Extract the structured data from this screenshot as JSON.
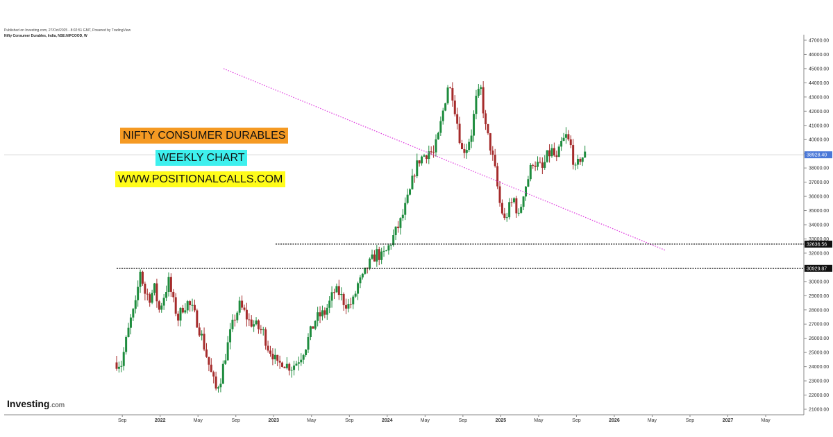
{
  "header": {
    "published": "Published on Investing.com, 27/Oct/2025 - 8:02:51 GMT, Powered by TradingView",
    "symbol": "Nifty Consumer Durables, India, NSE:NIFCOOD, W"
  },
  "annotations": {
    "title": "NIFTY CONSUMER DURABLES",
    "subtitle": "WEEKLY CHART",
    "website": "WWW.POSITIONALCALLS.COM"
  },
  "logo": {
    "name": "Investing",
    "suffix": ".com"
  },
  "colors": {
    "up": "#1e8c3e",
    "down": "#a52b2b",
    "trendline": "#e040e0",
    "support": "#111111",
    "last_price_tag": "#4a78d8",
    "level_tag": "#111111"
  },
  "chart_data": {
    "type": "candlestick",
    "timeframe": "Weekly",
    "y_axis": {
      "min": 21000,
      "max": 47000,
      "step": 1000,
      "position": "right"
    },
    "x_axis": {
      "tick_labels": [
        "Sep",
        "2022",
        "May",
        "Sep",
        "2023",
        "May",
        "Sep",
        "2024",
        "May",
        "Sep",
        "2025",
        "May",
        "Sep",
        "2026",
        "May",
        "Sep",
        "2027",
        "May"
      ]
    },
    "last_price": {
      "label": "38928.40",
      "value": 38928.4
    },
    "levels": [
      {
        "label": "32636.56",
        "value": 32636.56
      },
      {
        "label": "30929.87",
        "value": 30929.87
      }
    ],
    "trendline": {
      "from": {
        "month_index": 11.3,
        "value": 45000
      },
      "to": {
        "month_index": 58.0,
        "value": 32200
      }
    },
    "price_path": [
      [
        0.0,
        24300
      ],
      [
        0.5,
        24200
      ],
      [
        1.0,
        25800
      ],
      [
        1.5,
        27300
      ],
      [
        2.0,
        28300
      ],
      [
        2.5,
        30800
      ],
      [
        3.0,
        29200
      ],
      [
        3.5,
        28900
      ],
      [
        4.0,
        29500
      ],
      [
        4.5,
        28000
      ],
      [
        5.0,
        29000
      ],
      [
        5.5,
        30000
      ],
      [
        6.0,
        28500
      ],
      [
        6.5,
        27400
      ],
      [
        7.0,
        28200
      ],
      [
        7.5,
        28500
      ],
      [
        8.0,
        28000
      ],
      [
        8.5,
        27200
      ],
      [
        9.0,
        26100
      ],
      [
        9.5,
        24800
      ],
      [
        10.0,
        23500
      ],
      [
        10.5,
        22400
      ],
      [
        11.0,
        23200
      ],
      [
        11.5,
        24800
      ],
      [
        12.0,
        26300
      ],
      [
        12.5,
        27500
      ],
      [
        13.0,
        28300
      ],
      [
        13.5,
        27800
      ],
      [
        14.0,
        27200
      ],
      [
        14.5,
        27000
      ],
      [
        15.0,
        26700
      ],
      [
        15.5,
        26400
      ],
      [
        16.0,
        25400
      ],
      [
        16.5,
        24900
      ],
      [
        17.0,
        24000
      ],
      [
        17.5,
        24400
      ],
      [
        18.0,
        24100
      ],
      [
        18.5,
        24000
      ],
      [
        19.0,
        24300
      ],
      [
        19.5,
        24800
      ],
      [
        20.0,
        25500
      ],
      [
        20.5,
        26400
      ],
      [
        21.0,
        27300
      ],
      [
        21.5,
        27600
      ],
      [
        22.0,
        27800
      ],
      [
        22.5,
        28500
      ],
      [
        23.0,
        29300
      ],
      [
        23.5,
        29200
      ],
      [
        24.0,
        28600
      ],
      [
        24.5,
        28300
      ],
      [
        25.0,
        28600
      ],
      [
        25.5,
        29800
      ],
      [
        26.0,
        30200
      ],
      [
        26.5,
        31000
      ],
      [
        27.0,
        31500
      ],
      [
        27.5,
        32000
      ],
      [
        28.0,
        31700
      ],
      [
        28.5,
        32100
      ],
      [
        29.0,
        32800
      ],
      [
        29.5,
        33500
      ],
      [
        30.0,
        34200
      ],
      [
        30.5,
        35200
      ],
      [
        31.0,
        36300
      ],
      [
        31.5,
        37800
      ],
      [
        32.0,
        38600
      ],
      [
        32.5,
        38900
      ],
      [
        33.0,
        39200
      ],
      [
        33.5,
        39000
      ],
      [
        34.0,
        40200
      ],
      [
        34.5,
        42000
      ],
      [
        35.0,
        43800
      ],
      [
        35.5,
        43200
      ],
      [
        36.0,
        41200
      ],
      [
        36.5,
        39200
      ],
      [
        37.0,
        39500
      ],
      [
        37.5,
        40500
      ],
      [
        38.0,
        42800
      ],
      [
        38.5,
        43500
      ],
      [
        39.0,
        40800
      ],
      [
        39.5,
        39500
      ],
      [
        40.0,
        37800
      ],
      [
        40.5,
        35500
      ],
      [
        41.0,
        34300
      ],
      [
        41.5,
        35200
      ],
      [
        42.0,
        35800
      ],
      [
        42.5,
        34500
      ],
      [
        43.0,
        36300
      ],
      [
        43.5,
        37300
      ],
      [
        44.0,
        38500
      ],
      [
        44.5,
        38200
      ],
      [
        45.0,
        37900
      ],
      [
        45.5,
        38800
      ],
      [
        46.0,
        39200
      ],
      [
        46.5,
        38500
      ],
      [
        47.0,
        39700
      ],
      [
        47.5,
        40200
      ],
      [
        48.0,
        39500
      ],
      [
        48.5,
        37800
      ],
      [
        49.0,
        38700
      ],
      [
        49.5,
        38900
      ]
    ]
  }
}
